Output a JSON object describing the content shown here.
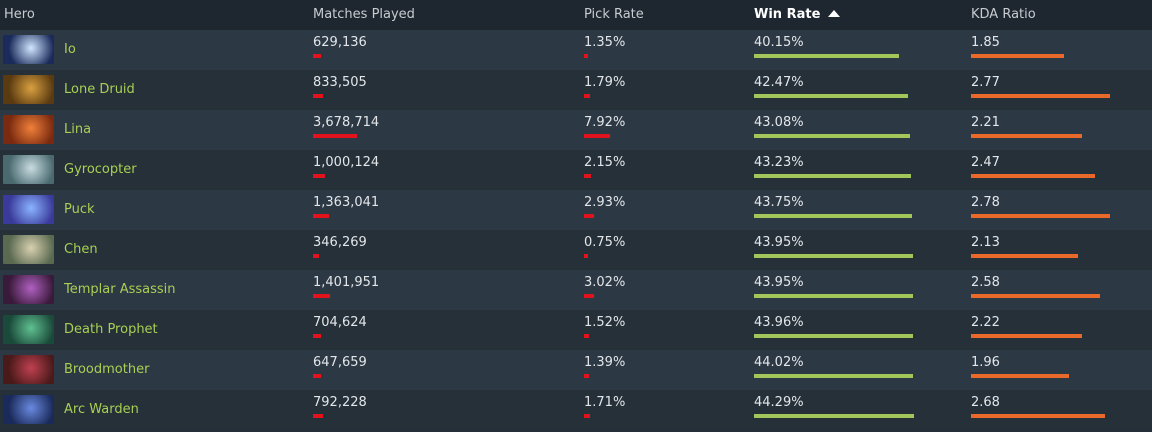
{
  "header": {
    "hero": "Hero",
    "matches": "Matches Played",
    "pick": "Pick Rate",
    "win": "Win Rate",
    "kda": "KDA Ratio"
  },
  "sort": {
    "column": "win",
    "direction": "ascending",
    "icon": "triangle-up-icon"
  },
  "colors": {
    "hero_name": "#a9cf54",
    "matches_bar": "#e3131e",
    "pick_bar": "#e3131e",
    "win_bar": "#a3c65a",
    "kda_bar": "#e8692a"
  },
  "rows": [
    {
      "hero": "Io",
      "matches": "629,136",
      "pick": "1.35%",
      "win": "40.15%",
      "kda": "1.85",
      "m": 629136,
      "p": 1.35,
      "w": 40.15,
      "k": 1.85,
      "portrait": [
        "#1a2a5a",
        "#cfe6ff"
      ]
    },
    {
      "hero": "Lone Druid",
      "matches": "833,505",
      "pick": "1.79%",
      "win": "42.47%",
      "kda": "2.77",
      "m": 833505,
      "p": 1.79,
      "w": 42.47,
      "k": 2.77,
      "portrait": [
        "#5a3a10",
        "#d9a040"
      ]
    },
    {
      "hero": "Lina",
      "matches": "3,678,714",
      "pick": "7.92%",
      "win": "43.08%",
      "kda": "2.21",
      "m": 3678714,
      "p": 7.92,
      "w": 43.08,
      "k": 2.21,
      "portrait": [
        "#7a2a10",
        "#f0803a"
      ]
    },
    {
      "hero": "Gyrocopter",
      "matches": "1,000,124",
      "pick": "2.15%",
      "win": "43.23%",
      "kda": "2.47",
      "m": 1000124,
      "p": 2.15,
      "w": 43.23,
      "k": 2.47,
      "portrait": [
        "#4a6a70",
        "#c8dce0"
      ]
    },
    {
      "hero": "Puck",
      "matches": "1,363,041",
      "pick": "2.93%",
      "win": "43.75%",
      "kda": "2.78",
      "m": 1363041,
      "p": 2.93,
      "w": 43.75,
      "k": 2.78,
      "portrait": [
        "#3a3a9a",
        "#8ab4ff"
      ]
    },
    {
      "hero": "Chen",
      "matches": "346,269",
      "pick": "0.75%",
      "win": "43.95%",
      "kda": "2.13",
      "m": 346269,
      "p": 0.75,
      "w": 43.95,
      "k": 2.13,
      "portrait": [
        "#5a6a50",
        "#d8d0b0"
      ]
    },
    {
      "hero": "Templar Assassin",
      "matches": "1,401,951",
      "pick": "3.02%",
      "win": "43.95%",
      "kda": "2.58",
      "m": 1401951,
      "p": 3.02,
      "w": 43.95,
      "k": 2.58,
      "portrait": [
        "#3a1a3a",
        "#b060c0"
      ]
    },
    {
      "hero": "Death Prophet",
      "matches": "704,624",
      "pick": "1.52%",
      "win": "43.96%",
      "kda": "2.22",
      "m": 704624,
      "p": 1.52,
      "w": 43.96,
      "k": 2.22,
      "portrait": [
        "#1a4a3a",
        "#60c090"
      ]
    },
    {
      "hero": "Broodmother",
      "matches": "647,659",
      "pick": "1.39%",
      "win": "44.02%",
      "kda": "1.96",
      "m": 647659,
      "p": 1.39,
      "w": 44.02,
      "k": 1.96,
      "portrait": [
        "#4a1a1a",
        "#c04050"
      ]
    },
    {
      "hero": "Arc Warden",
      "matches": "792,228",
      "pick": "1.71%",
      "win": "44.29%",
      "kda": "2.68",
      "m": 792228,
      "p": 1.71,
      "w": 44.29,
      "k": 2.68,
      "portrait": [
        "#1a2a5a",
        "#6a8ae0"
      ]
    }
  ]
}
